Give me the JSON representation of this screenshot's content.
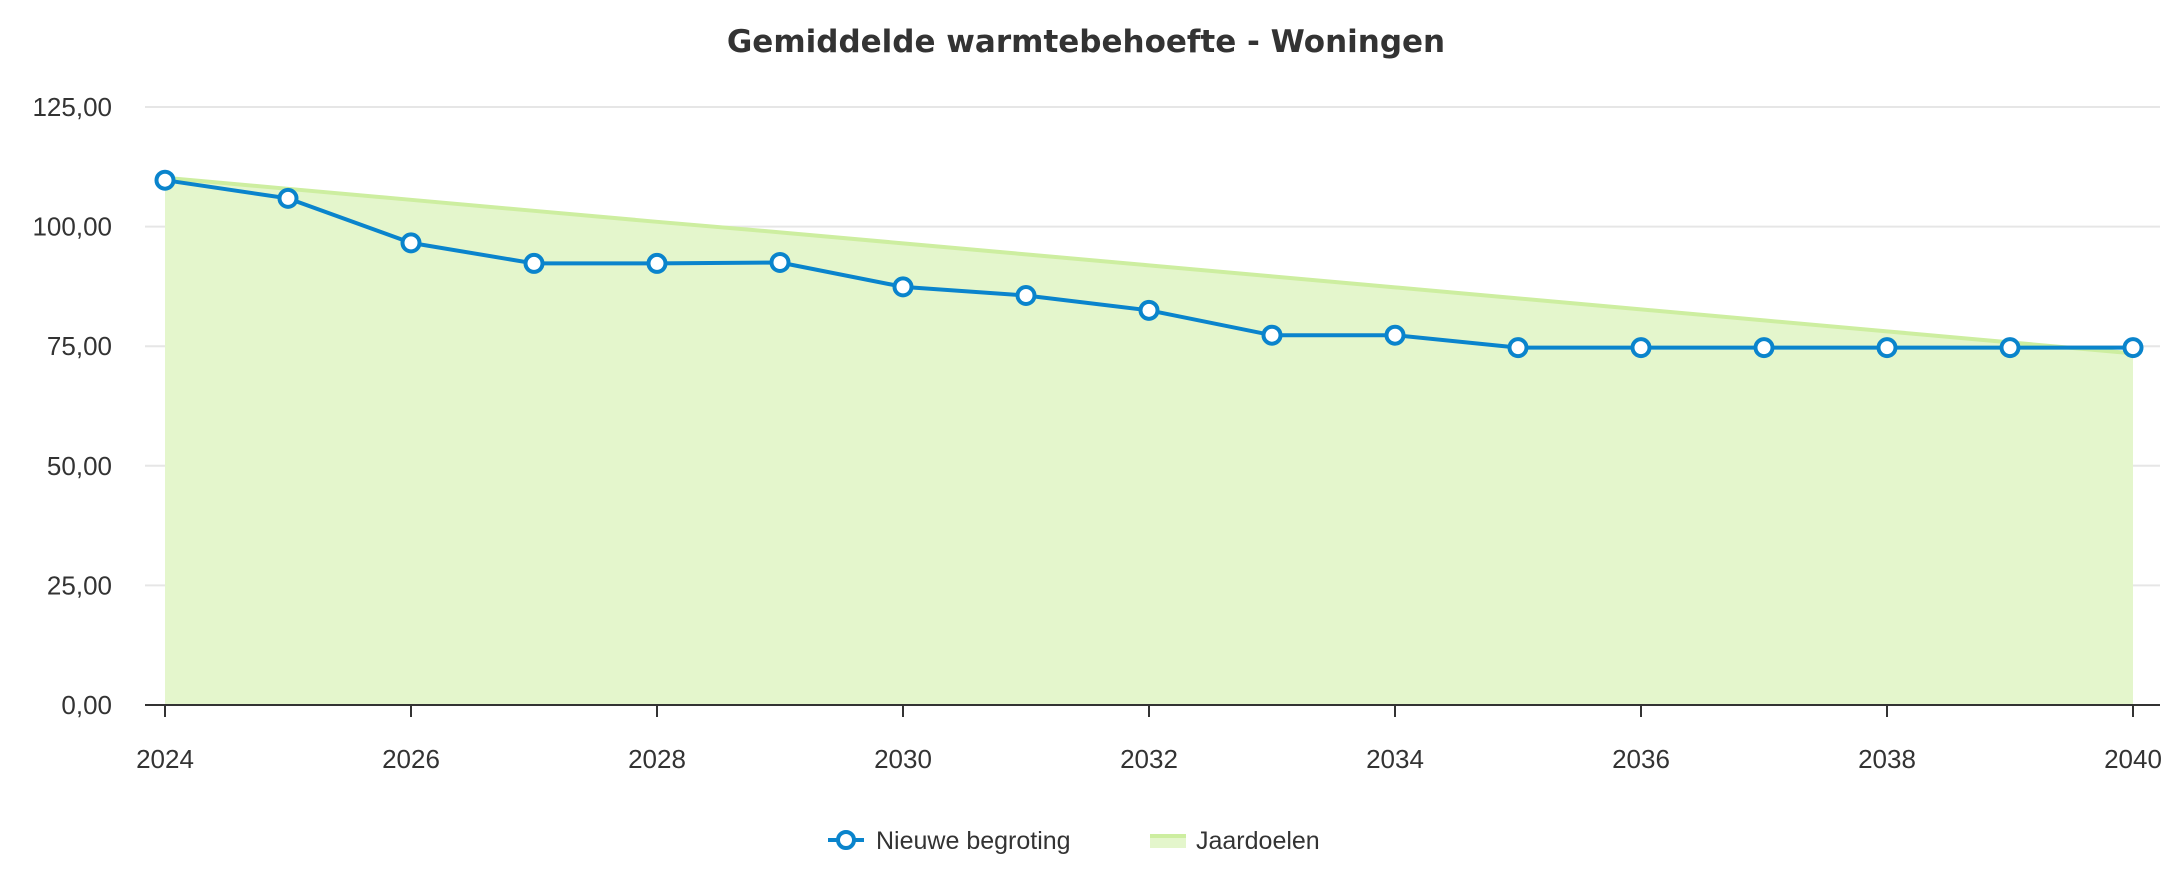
{
  "chart_data": {
    "type": "line",
    "title": "Gemiddelde warmtebehoefte - Woningen",
    "xlabel": "",
    "ylabel": "",
    "x": [
      2024,
      2025,
      2026,
      2027,
      2028,
      2029,
      2030,
      2031,
      2032,
      2033,
      2034,
      2035,
      2036,
      2037,
      2038,
      2039,
      2040
    ],
    "x_ticks": [
      "2024",
      "2026",
      "2028",
      "2030",
      "2032",
      "2034",
      "2036",
      "2038",
      "2040"
    ],
    "y_ticks": [
      "0,00",
      "25,00",
      "50,00",
      "75,00",
      "100,00",
      "125,00"
    ],
    "ylim": [
      0,
      125
    ],
    "xlim": [
      2024,
      2040
    ],
    "grid": true,
    "legend_position": "bottom",
    "series": [
      {
        "name": "Nieuwe begroting",
        "type": "line",
        "color": "#0a84cc",
        "values": [
          109.7,
          105.9,
          96.6,
          92.3,
          92.3,
          92.5,
          87.4,
          85.6,
          82.5,
          77.3,
          77.3,
          74.7,
          74.7,
          74.7,
          74.7,
          74.7,
          74.7
        ]
      },
      {
        "name": "Jaardoelen",
        "type": "area",
        "color": "#cdeea0",
        "fill": "#e4f6cc",
        "values": [
          110.2,
          107.9,
          105.6,
          103.3,
          101.0,
          98.8,
          96.5,
          94.2,
          91.9,
          89.6,
          87.3,
          85.0,
          82.7,
          80.4,
          78.1,
          75.8,
          73.5
        ]
      }
    ]
  }
}
